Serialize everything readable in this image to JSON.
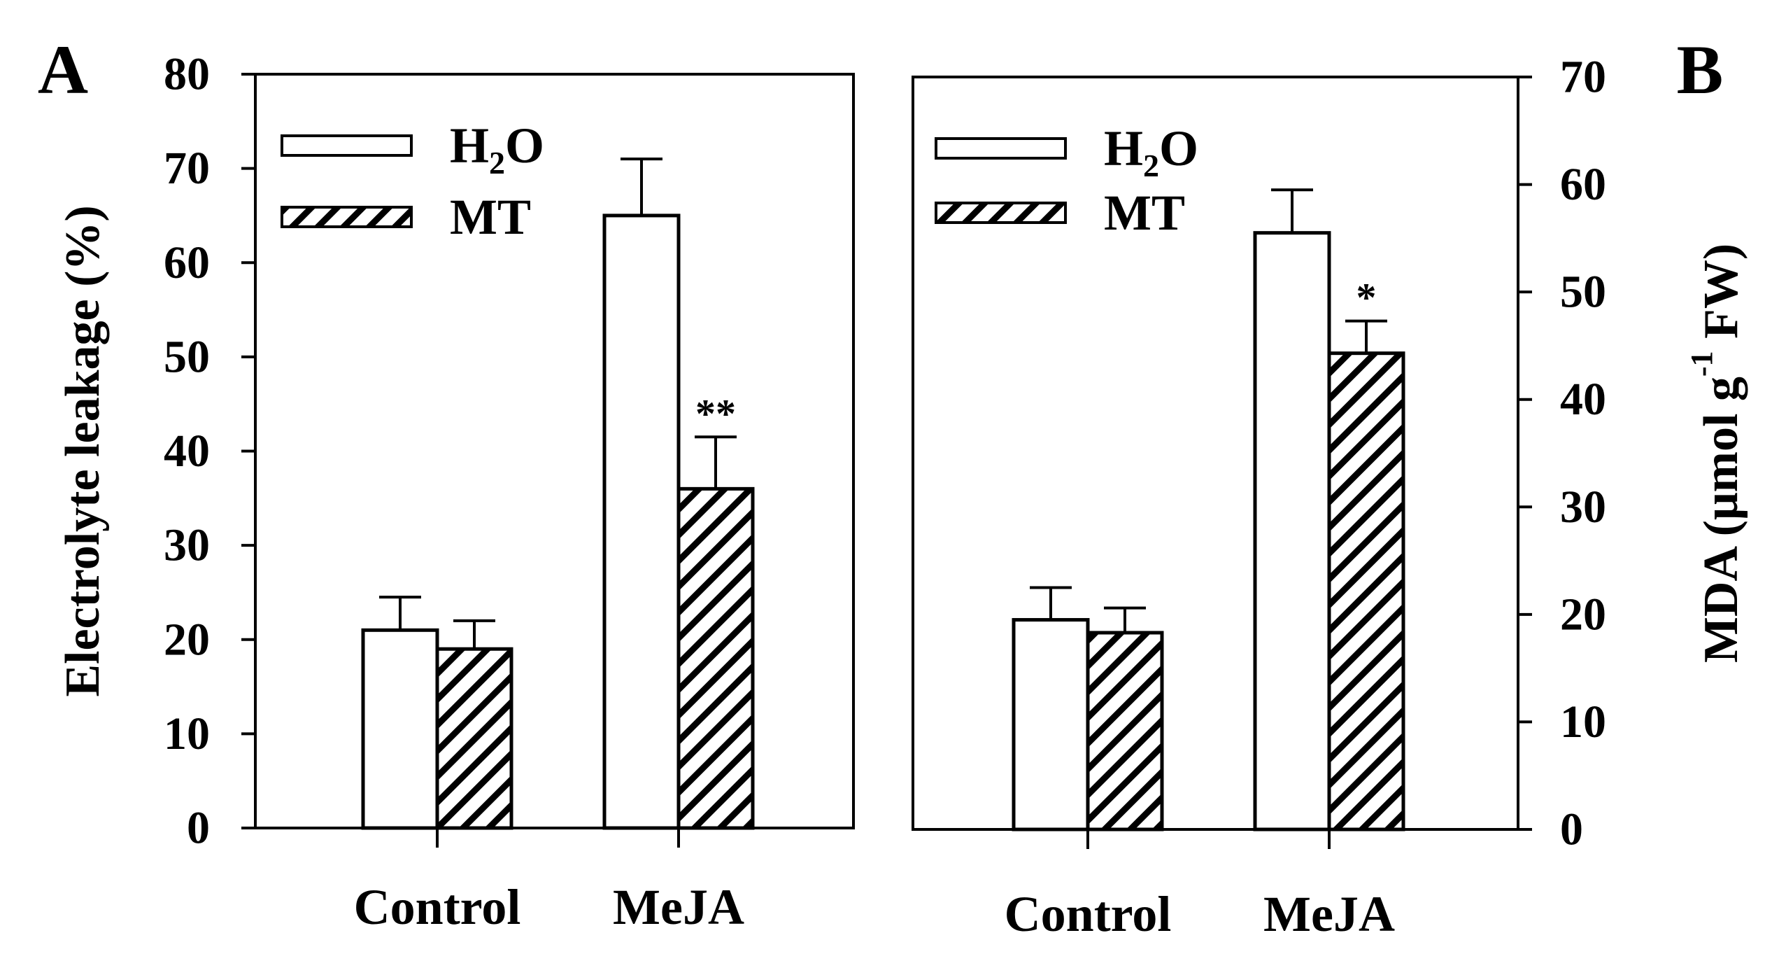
{
  "chart_data": [
    {
      "type": "bar",
      "panel_label": "A",
      "title": "",
      "xlabel": "",
      "ylabel": "Electrolyte leakage (%)",
      "ylim": [
        0,
        80
      ],
      "yticks": [
        0,
        10,
        20,
        30,
        40,
        50,
        60,
        70,
        80
      ],
      "y_axis_side": "left",
      "categories": [
        "Control",
        "MeJA"
      ],
      "series": [
        {
          "name": "H2O",
          "legend_main": "H",
          "legend_sub": "2",
          "legend_tail": "O",
          "pattern": "open",
          "values": [
            21,
            65
          ],
          "errors": [
            3.5,
            6
          ]
        },
        {
          "name": "MT",
          "pattern": "hatched",
          "values": [
            19,
            36
          ],
          "errors": [
            3,
            5.5
          ]
        }
      ],
      "annotations": [
        {
          "category": "MeJA",
          "series": "MT",
          "text": "**"
        }
      ],
      "legend_position": "top-left"
    },
    {
      "type": "bar",
      "panel_label": "B",
      "title": "",
      "xlabel": "",
      "ylabel_prefix": "MDA (μmol g",
      "ylabel_sup": "-1",
      "ylabel_suffix": " FW)",
      "ylim": [
        0,
        70
      ],
      "yticks": [
        0,
        10,
        20,
        30,
        40,
        50,
        60,
        70
      ],
      "y_axis_side": "right",
      "categories": [
        "Control",
        "MeJA"
      ],
      "series": [
        {
          "name": "H2O",
          "legend_main": "H",
          "legend_sub": "2",
          "legend_tail": "O",
          "pattern": "open",
          "values": [
            19.5,
            55.5
          ],
          "errors": [
            3,
            4
          ]
        },
        {
          "name": "MT",
          "pattern": "hatched",
          "values": [
            18.3,
            44.3
          ],
          "errors": [
            2.3,
            3
          ]
        }
      ],
      "annotations": [
        {
          "category": "MeJA",
          "series": "MT",
          "text": "*"
        }
      ],
      "legend_position": "top-left"
    }
  ]
}
